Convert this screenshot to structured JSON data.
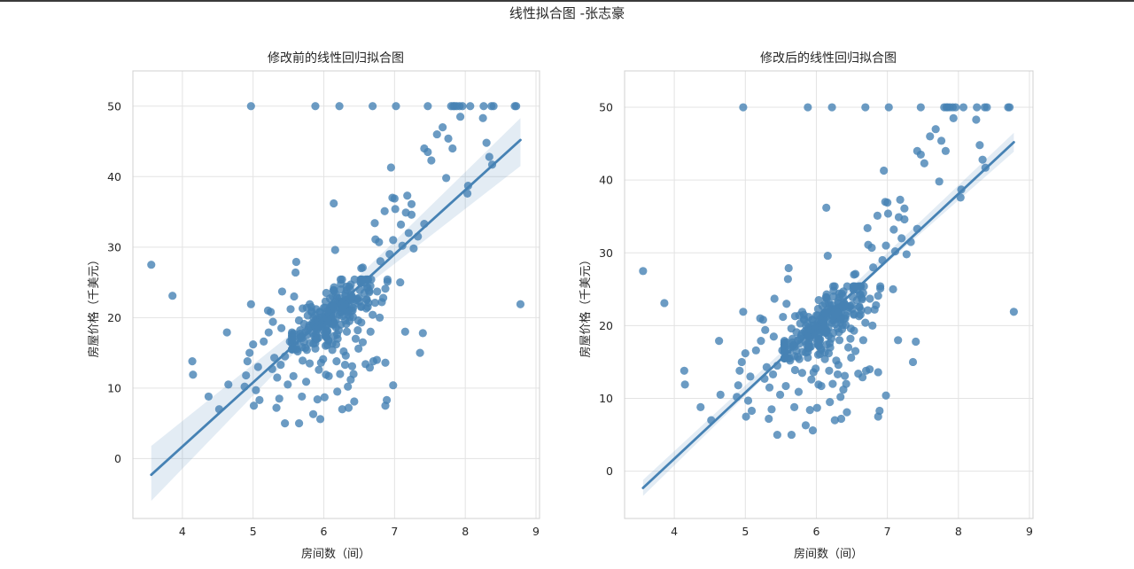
{
  "figure": {
    "suptitle": "线性拟合图 -张志豪",
    "point_color": "#4682b4",
    "line_color": "#4682b4",
    "band_color": "#4682b4",
    "grid_color": "#e3e3e3",
    "frame_color": "#d0d0d0"
  },
  "chart_data": [
    {
      "type": "scatter",
      "title": "修改前的线性回归拟合图",
      "xlabel": "房间数（间）",
      "ylabel": "房屋价格（千美元）",
      "xlim": [
        3.3,
        9.05
      ],
      "ylim": [
        -8.5,
        55
      ],
      "xticks": [
        4,
        5,
        6,
        7,
        8,
        9
      ],
      "yticks": [
        0,
        10,
        20,
        30,
        40,
        50
      ],
      "grid": true,
      "fit_line": {
        "x": [
          3.56,
          8.78
        ],
        "y": [
          -2.3,
          45.2
        ]
      },
      "ci_band": {
        "x": [
          3.56,
          6.2,
          8.78
        ],
        "lower": [
          -6.0,
          21.4,
          41.5
        ],
        "upper": [
          1.8,
          23.0,
          48.3
        ]
      },
      "points": []
    },
    {
      "type": "scatter",
      "title": "修改后的线性回归拟合图",
      "xlabel": "房间数（间）",
      "ylabel": "房屋价格（千美元）",
      "xlim": [
        3.3,
        9.05
      ],
      "ylim": [
        -6.5,
        55
      ],
      "xticks": [
        4,
        5,
        6,
        7,
        8,
        9
      ],
      "yticks": [
        0,
        10,
        20,
        30,
        40,
        50
      ],
      "grid": true,
      "fit_line": {
        "x": [
          3.56,
          8.78
        ],
        "y": [
          -2.3,
          45.2
        ]
      },
      "ci_band": {
        "x": [
          3.56,
          6.2,
          8.78
        ],
        "lower": [
          -3.4,
          21.8,
          43.9
        ],
        "upper": [
          -1.2,
          22.6,
          46.5
        ]
      },
      "points": []
    }
  ]
}
